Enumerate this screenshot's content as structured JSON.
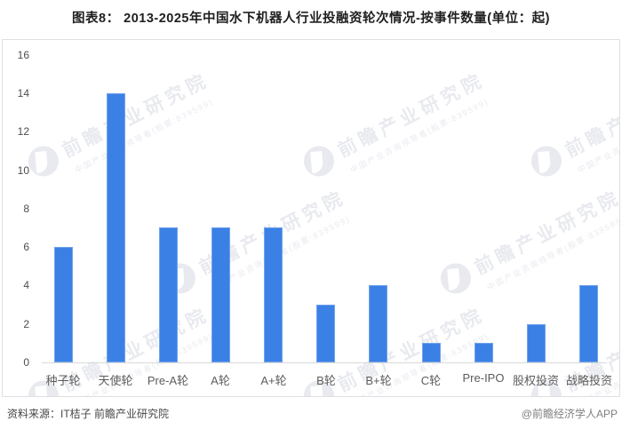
{
  "title": "图表8： 2013-2025年中国水下机器人行业投融资轮次情况-按事件数量(单位：起)",
  "chart_data": {
    "type": "bar",
    "title": "2013-2025年中国水下机器人行业投融资轮次情况-按事件数量(单位：起)",
    "categories": [
      "种子轮",
      "天使轮",
      "Pre-A轮",
      "A轮",
      "A+轮",
      "B轮",
      "B+轮",
      "C轮",
      "Pre-IPO",
      "股权投资",
      "战略投资"
    ],
    "values": [
      6,
      14,
      7,
      7,
      7,
      3,
      4,
      1,
      1,
      2,
      4
    ],
    "xlabel": "",
    "ylabel": "",
    "ylim": [
      0,
      16
    ],
    "yticks": [
      0,
      2,
      4,
      6,
      8,
      10,
      12,
      14,
      16
    ],
    "grid": false,
    "legend_position": "none"
  },
  "watermark": {
    "main": "前瞻产业研究院",
    "sub": "中国产业咨询领导者(股票:839599)"
  },
  "footer": {
    "source": "资料来源：IT桔子 前瞻产业研究院",
    "credit": "@前瞻经济学人APP"
  },
  "colors": {
    "bar": "#3b80e5",
    "axis_line": "#d9d9d9",
    "tick_text": "#4d4d4d",
    "category_text": "#5c5c5c",
    "panel_border": "#dfdfe4",
    "watermark": "#e8eaef"
  }
}
